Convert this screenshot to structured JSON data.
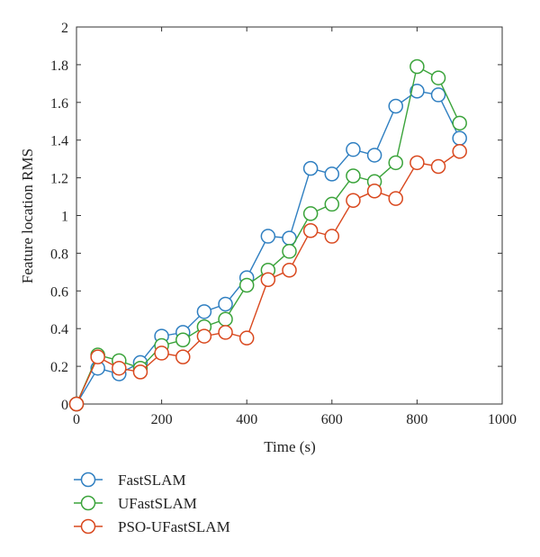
{
  "chart_data": {
    "type": "line",
    "xlabel": "Time (s)",
    "ylabel": "Feature location RMS",
    "xlim": [
      0,
      1000
    ],
    "ylim": [
      0,
      2
    ],
    "xticks": [
      0,
      200,
      400,
      600,
      800,
      1000
    ],
    "yticks": [
      0,
      0.2,
      0.4,
      0.6,
      0.8,
      1,
      1.2,
      1.4,
      1.6,
      1.8,
      2
    ],
    "xtick_labels": [
      "0",
      "200",
      "400",
      "600",
      "800",
      "1000"
    ],
    "ytick_labels": [
      "0",
      "0.2",
      "0.4",
      "0.6",
      "0.8",
      "1",
      "1.2",
      "1.4",
      "1.6",
      "1.8",
      "2"
    ],
    "grid": false,
    "legend_position": "bottom-left, below plot",
    "x": [
      0,
      50,
      100,
      150,
      200,
      250,
      300,
      350,
      400,
      450,
      500,
      550,
      600,
      650,
      700,
      750,
      800,
      850,
      900
    ],
    "series": [
      {
        "name": "FastSLAM",
        "color": "#2f7fc1",
        "values": [
          0,
          0.19,
          0.16,
          0.22,
          0.36,
          0.38,
          0.49,
          0.53,
          0.67,
          0.89,
          0.88,
          1.25,
          1.22,
          1.35,
          1.32,
          1.58,
          1.66,
          1.64,
          1.41
        ]
      },
      {
        "name": "UFastSLAM",
        "color": "#3aa33a",
        "values": [
          0,
          0.26,
          0.23,
          0.19,
          0.31,
          0.34,
          0.41,
          0.45,
          0.63,
          0.71,
          0.81,
          1.01,
          1.06,
          1.21,
          1.18,
          1.28,
          1.79,
          1.73,
          1.49
        ]
      },
      {
        "name": "PSO-UFastSLAM",
        "color": "#d9481e",
        "values": [
          0,
          0.25,
          0.19,
          0.17,
          0.27,
          0.25,
          0.36,
          0.38,
          0.35,
          0.66,
          0.71,
          0.92,
          0.89,
          1.08,
          1.13,
          1.09,
          1.28,
          1.26,
          1.34
        ]
      }
    ]
  }
}
